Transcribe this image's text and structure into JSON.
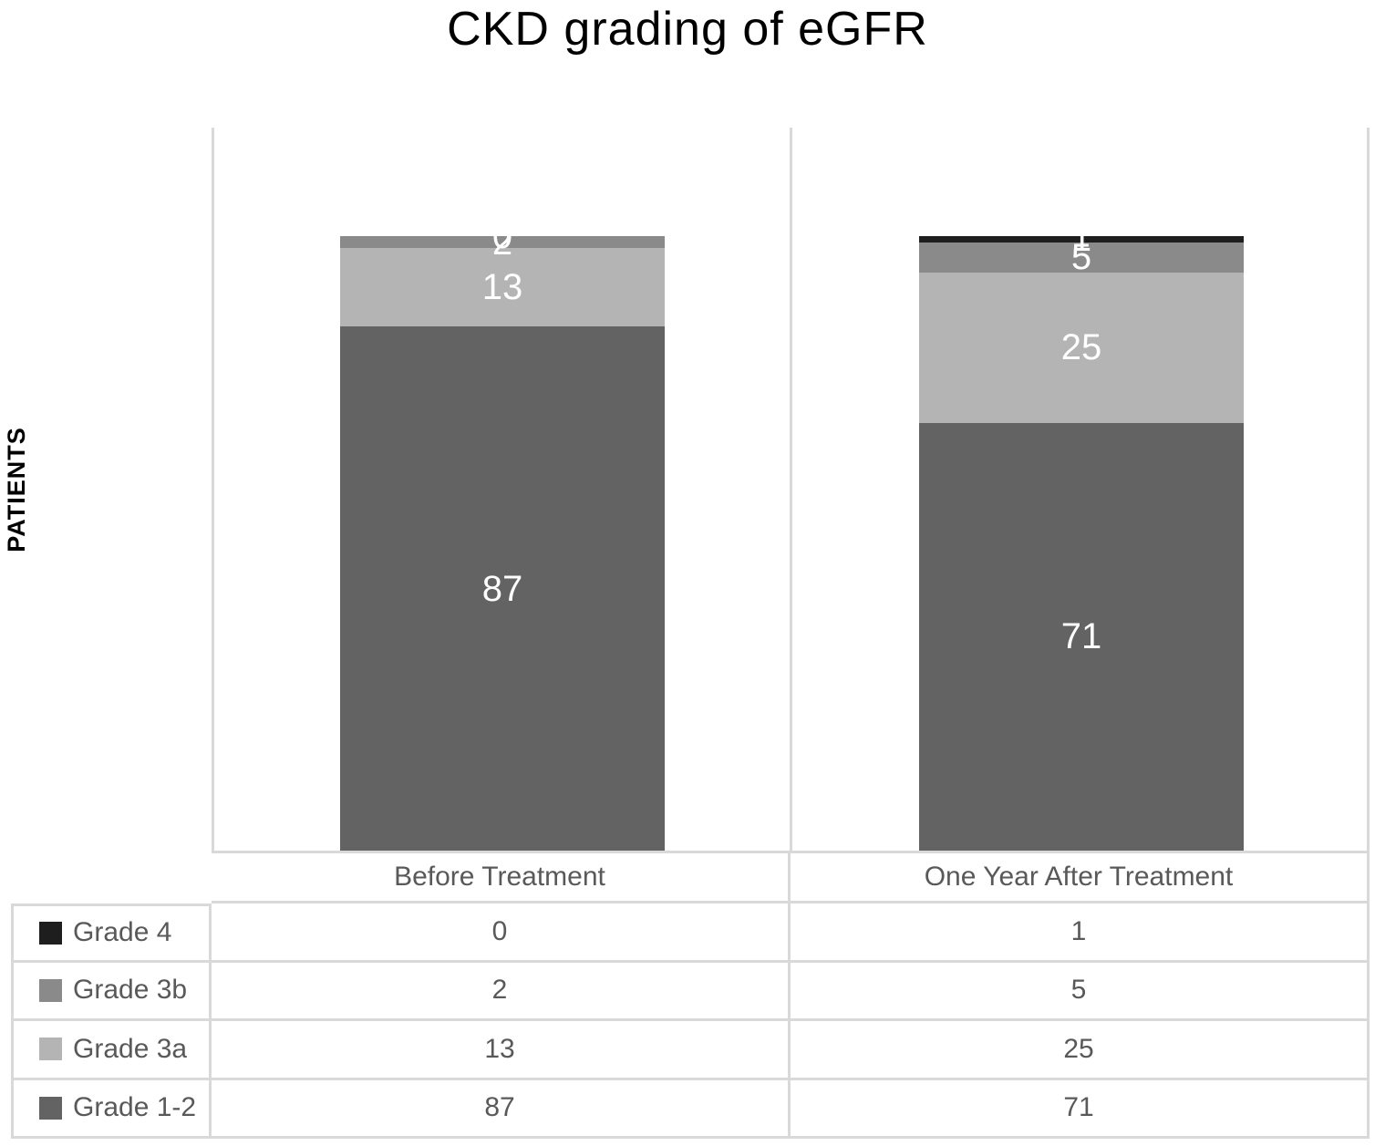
{
  "title": "CKD grading of eGFR",
  "ylabel": "PATIENTS",
  "chart_data": {
    "type": "bar",
    "subtype": "stacked-column",
    "title": "CKD grading of eGFR",
    "xlabel": "",
    "ylabel": "PATIENTS",
    "ylim": [
      0,
      120
    ],
    "grid": false,
    "axis_ticks_visible": false,
    "data_labels": true,
    "data_label_color": "#ffffff",
    "legend_position": "left-of-data-table",
    "categories": [
      "Before Treatment",
      "One Year After Treatment"
    ],
    "series": [
      {
        "name": "Grade 4",
        "color": "#1e1e1e",
        "values": [
          0,
          1
        ]
      },
      {
        "name": "Grade 3b",
        "color": "#8a8a8a",
        "values": [
          2,
          5
        ]
      },
      {
        "name": "Grade 3a",
        "color": "#b4b4b4",
        "values": [
          13,
          25
        ]
      },
      {
        "name": "Grade 1-2",
        "color": "#636363",
        "values": [
          87,
          71
        ]
      }
    ],
    "stack_order_top_to_bottom": [
      "Grade 4",
      "Grade 3b",
      "Grade 3a",
      "Grade 1-2"
    ],
    "column_totals": [
      102,
      102
    ]
  },
  "style_colors": {
    "border": "#d9d9d9",
    "table_text": "#595959",
    "title_text": "#000000"
  }
}
